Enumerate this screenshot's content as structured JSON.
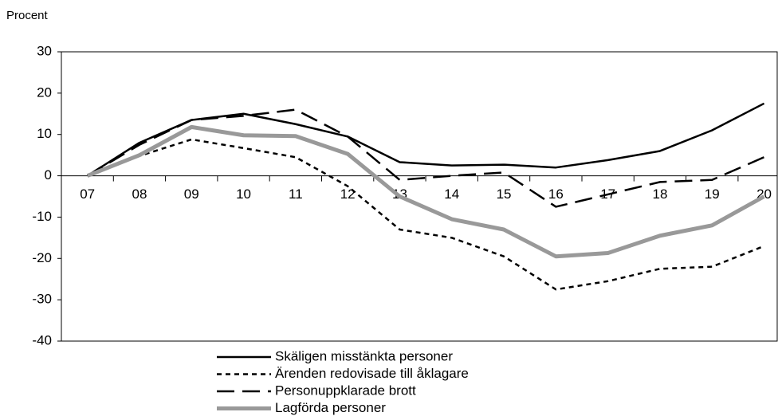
{
  "chart_data": {
    "type": "line",
    "y_label": "Procent",
    "categories": [
      "07",
      "08",
      "09",
      "10",
      "11",
      "12",
      "13",
      "14",
      "15",
      "16",
      "17",
      "18",
      "19",
      "20"
    ],
    "series": [
      {
        "name": "Skäligen misstänkta personer",
        "color": "#000000",
        "line_style": "solid",
        "line_width": 2.5,
        "values": [
          0,
          8,
          13.5,
          15,
          12.5,
          9.5,
          3.3,
          2.5,
          2.7,
          2,
          3.8,
          6,
          11,
          17.5
        ]
      },
      {
        "name": "Ärenden redovisade till åklagare",
        "color": "#000000",
        "line_style": "short-dash",
        "line_width": 2.5,
        "values": [
          0,
          4.8,
          8.8,
          6.7,
          4.5,
          -2.5,
          -13,
          -15,
          -19.5,
          -27.5,
          -25.5,
          -22.5,
          -22,
          -17
        ]
      },
      {
        "name": "Personuppklarade brott",
        "color": "#000000",
        "line_style": "long-dash",
        "line_width": 2.5,
        "values": [
          0,
          7.5,
          13.5,
          14.5,
          16,
          9.5,
          -1,
          0,
          0.8,
          -7.5,
          -4.5,
          -1.5,
          -1,
          4.5
        ]
      },
      {
        "name": "Lagförda personer",
        "color": "#999999",
        "line_style": "solid",
        "line_width": 5,
        "values": [
          0,
          5,
          11.8,
          9.8,
          9.6,
          5.3,
          -5,
          -10.5,
          -13,
          -19.5,
          -18.7,
          -14.5,
          -12,
          -5
        ]
      }
    ],
    "ylim": [
      -40,
      30
    ],
    "yticks": [
      -40,
      -30,
      -20,
      -10,
      0,
      10,
      20,
      30
    ],
    "legend": "bottom"
  }
}
